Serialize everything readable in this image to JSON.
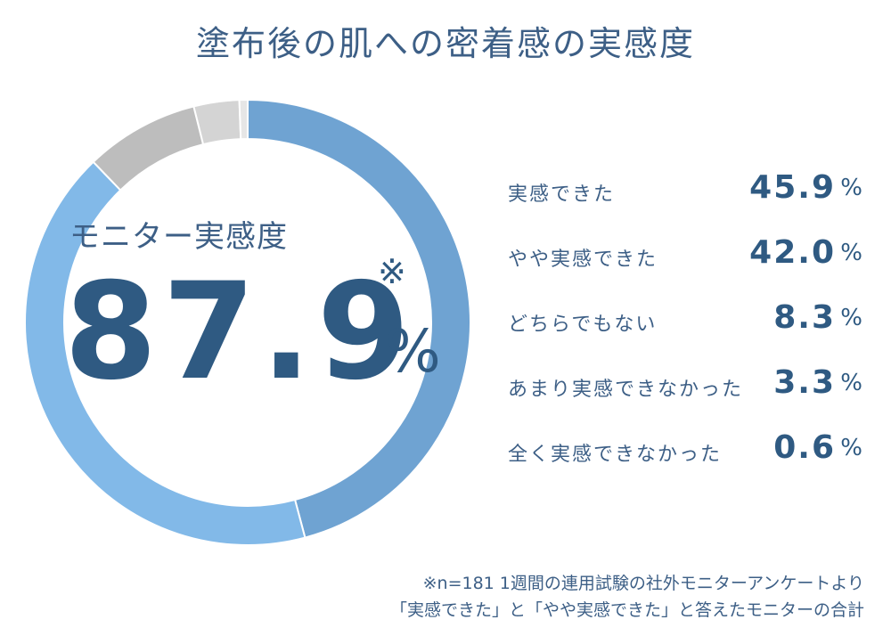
{
  "title": "塗布後の肌への密着感の実感度",
  "center": {
    "label": "モニター実感度",
    "value": "87.9",
    "unit": "%",
    "note_mark": "※"
  },
  "chart_data": {
    "type": "pie",
    "donut": true,
    "categories": [
      "実感できた",
      "やや実感できた",
      "どちらでもない",
      "あまり実感できなかった",
      "全く実感できなかった"
    ],
    "values": [
      45.9,
      42.0,
      8.3,
      3.3,
      0.6
    ],
    "value_labels": [
      "45.9",
      "42.0",
      "8.3",
      "3.3",
      "0.6"
    ],
    "unit": "%",
    "colors": [
      "#6fa3d2",
      "#82b9e8",
      "#bdbdbd",
      "#d4d4d4",
      "#e6e6e6"
    ]
  },
  "footnote": {
    "line1": "※n=181 1週間の連用試験の社外モニターアンケートより",
    "line2": "「実感できた」と「やや実感できた」と答えたモニターの合計"
  }
}
